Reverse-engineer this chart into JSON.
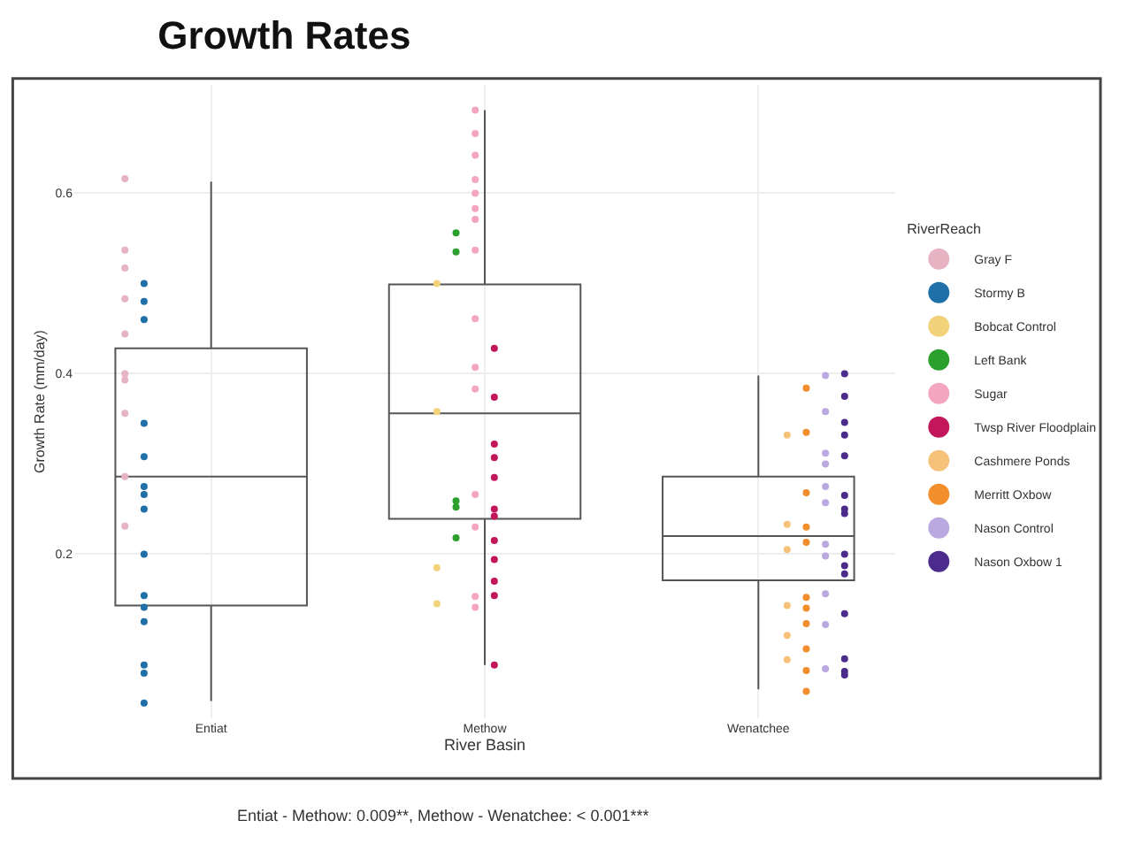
{
  "chart_data": {
    "type": "box",
    "title": "Growth Rates",
    "xlabel": "River Basin",
    "ylabel": "Growth Rate (mm/day)",
    "legend_title": "RiverReach",
    "categories": [
      "Entiat",
      "Methow",
      "Wenatchee"
    ],
    "boxes": [
      {
        "low": 0.037,
        "q1": 0.143,
        "median": 0.286,
        "q3": 0.428,
        "high": 0.613
      },
      {
        "low": 0.077,
        "q1": 0.239,
        "median": 0.356,
        "q3": 0.499,
        "high": 0.692
      },
      {
        "low": 0.05,
        "q1": 0.171,
        "median": 0.22,
        "q3": 0.286,
        "high": 0.398
      }
    ],
    "series": [
      {
        "name": "Gray F",
        "type": "scatter",
        "color": "#e6b3c3",
        "x": [
          "Entiat",
          "Entiat",
          "Entiat",
          "Entiat",
          "Entiat",
          "Entiat",
          "Entiat",
          "Entiat",
          "Entiat",
          "Entiat"
        ],
        "values": [
          0.616,
          0.537,
          0.517,
          0.483,
          0.444,
          0.4,
          0.393,
          0.356,
          0.286,
          0.231
        ]
      },
      {
        "name": "Stormy B",
        "type": "scatter",
        "color": "#1f6fa8",
        "x": [
          "Entiat",
          "Entiat",
          "Entiat",
          "Entiat",
          "Entiat",
          "Entiat",
          "Entiat",
          "Entiat",
          "Entiat",
          "Entiat",
          "Entiat",
          "Entiat",
          "Entiat",
          "Entiat",
          "Entiat"
        ],
        "values": [
          0.5,
          0.48,
          0.46,
          0.345,
          0.308,
          0.275,
          0.266,
          0.25,
          0.2,
          0.154,
          0.141,
          0.125,
          0.077,
          0.068,
          0.035
        ]
      },
      {
        "name": "Bobcat Control",
        "type": "scatter",
        "color": "#f2d27a",
        "x": [
          "Methow",
          "Methow",
          "Methow",
          "Methow"
        ],
        "values": [
          0.5,
          0.358,
          0.185,
          0.145
        ]
      },
      {
        "name": "Left Bank",
        "type": "scatter",
        "color": "#2ca02c",
        "x": [
          "Methow",
          "Methow",
          "Methow",
          "Methow",
          "Methow"
        ],
        "values": [
          0.556,
          0.535,
          0.259,
          0.252,
          0.218
        ]
      },
      {
        "name": "Sugar",
        "type": "scatter",
        "color": "#f4a6c0",
        "x": [
          "Methow",
          "Methow",
          "Methow",
          "Methow",
          "Methow",
          "Methow",
          "Methow",
          "Methow",
          "Methow",
          "Methow",
          "Methow",
          "Methow",
          "Methow",
          "Methow",
          "Methow"
        ],
        "values": [
          0.692,
          0.666,
          0.642,
          0.615,
          0.6,
          0.583,
          0.571,
          0.537,
          0.461,
          0.407,
          0.383,
          0.266,
          0.23,
          0.153,
          0.141
        ]
      },
      {
        "name": "Twsp River Floodplain",
        "type": "scatter",
        "color": "#c2185b",
        "x": [
          "Methow",
          "Methow",
          "Methow",
          "Methow",
          "Methow",
          "Methow",
          "Methow",
          "Methow",
          "Methow",
          "Methow",
          "Methow",
          "Methow"
        ],
        "values": [
          0.428,
          0.374,
          0.322,
          0.307,
          0.285,
          0.25,
          0.242,
          0.215,
          0.194,
          0.17,
          0.154,
          0.077
        ]
      },
      {
        "name": "Cashmere Ponds",
        "type": "scatter",
        "color": "#f6c27a",
        "x": [
          "Wenatchee",
          "Wenatchee",
          "Wenatchee",
          "Wenatchee",
          "Wenatchee",
          "Wenatchee"
        ],
        "values": [
          0.332,
          0.233,
          0.205,
          0.143,
          0.11,
          0.083
        ]
      },
      {
        "name": "Merritt Oxbow",
        "type": "scatter",
        "color": "#f28e2b",
        "x": [
          "Wenatchee",
          "Wenatchee",
          "Wenatchee",
          "Wenatchee",
          "Wenatchee",
          "Wenatchee",
          "Wenatchee",
          "Wenatchee",
          "Wenatchee",
          "Wenatchee",
          "Wenatchee"
        ],
        "values": [
          0.384,
          0.335,
          0.268,
          0.23,
          0.213,
          0.152,
          0.14,
          0.123,
          0.095,
          0.071,
          0.048
        ]
      },
      {
        "name": "Nason Control",
        "type": "scatter",
        "color": "#b9a9e0",
        "x": [
          "Wenatchee",
          "Wenatchee",
          "Wenatchee",
          "Wenatchee",
          "Wenatchee",
          "Wenatchee",
          "Wenatchee",
          "Wenatchee",
          "Wenatchee",
          "Wenatchee",
          "Wenatchee"
        ],
        "values": [
          0.398,
          0.358,
          0.312,
          0.3,
          0.275,
          0.257,
          0.211,
          0.198,
          0.156,
          0.122,
          0.073
        ]
      },
      {
        "name": "Nason Oxbow 1",
        "type": "scatter",
        "color": "#4b2c8c",
        "x": [
          "Wenatchee",
          "Wenatchee",
          "Wenatchee",
          "Wenatchee",
          "Wenatchee",
          "Wenatchee",
          "Wenatchee",
          "Wenatchee",
          "Wenatchee",
          "Wenatchee",
          "Wenatchee",
          "Wenatchee",
          "Wenatchee",
          "Wenatchee",
          "Wenatchee"
        ],
        "values": [
          0.4,
          0.375,
          0.346,
          0.332,
          0.309,
          0.265,
          0.25,
          0.245,
          0.2,
          0.187,
          0.178,
          0.134,
          0.084,
          0.07,
          0.066
        ]
      }
    ],
    "ylim": [
      0.018,
      0.72
    ],
    "yticks": [
      0.2,
      0.4,
      0.6
    ],
    "grid": true,
    "legend": "right",
    "marker": "circle",
    "annotations": [
      "Entiat - Methow: 0.009**, Methow - Wenatchee: < 0.001***"
    ]
  }
}
